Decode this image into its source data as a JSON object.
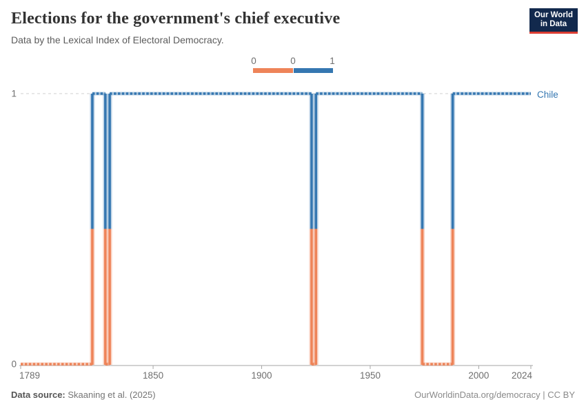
{
  "header": {
    "title": "Elections for the government's chief executive",
    "subtitle": "Data by the Lexical Index of Electoral Democracy.",
    "logo_line1": "Our World",
    "logo_line2": "in Data"
  },
  "legend": {
    "labels": [
      "0",
      "0",
      "1"
    ],
    "bins": [
      {
        "value": 0,
        "color": "#ee8459"
      },
      {
        "value": 1,
        "color": "#3577b1"
      }
    ]
  },
  "chart_data": {
    "type": "line",
    "title": "Elections for the government's chief executive",
    "entity": "Chile",
    "xlim": [
      1789,
      2024
    ],
    "ylim": [
      0,
      1
    ],
    "x_ticks": [
      1789,
      1850,
      1900,
      1950,
      2000,
      2024
    ],
    "y_ticks": [
      0,
      1
    ],
    "grid": "dashed line at y=1, solid axis at y=0",
    "legend_position": "top-center",
    "colors": {
      "value0": "#ee8459",
      "value1": "#3577b1"
    },
    "series": [
      {
        "name": "Chile",
        "style": "stepped-dotted",
        "steps": [
          {
            "from": 1789,
            "to": 1821,
            "value": 0
          },
          {
            "from": 1822,
            "to": 1827,
            "value": 1
          },
          {
            "from": 1828,
            "to": 1829,
            "value": 0
          },
          {
            "from": 1830,
            "to": 1922,
            "value": 1
          },
          {
            "from": 1923,
            "to": 1924,
            "value": 0
          },
          {
            "from": 1925,
            "to": 1973,
            "value": 1
          },
          {
            "from": 1974,
            "to": 1987,
            "value": 0
          },
          {
            "from": 1988,
            "to": 2024,
            "value": 1
          }
        ]
      }
    ]
  },
  "footer": {
    "source_label": "Data source:",
    "source_text": " Skaaning et al. (2025)",
    "rights": "OurWorldinData.org/democracy | CC BY"
  }
}
